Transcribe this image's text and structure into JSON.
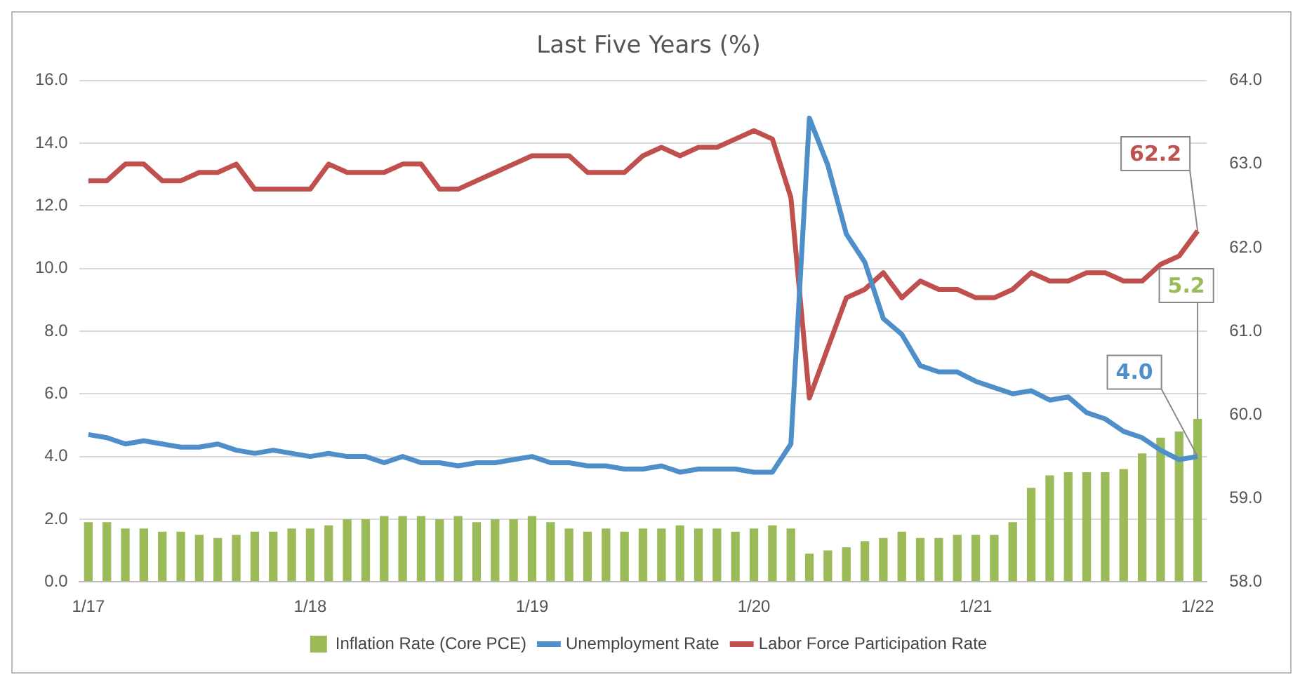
{
  "chart_data": {
    "type": "bar",
    "title": "Last Five Years (%)",
    "categories": [
      "1/17",
      null,
      null,
      null,
      null,
      null,
      null,
      null,
      null,
      null,
      null,
      null,
      "1/18",
      null,
      null,
      null,
      null,
      null,
      null,
      null,
      null,
      null,
      null,
      null,
      "1/19",
      null,
      null,
      null,
      null,
      null,
      null,
      null,
      null,
      null,
      null,
      null,
      "1/20",
      null,
      null,
      null,
      null,
      null,
      null,
      null,
      null,
      null,
      null,
      null,
      "1/21",
      null,
      null,
      null,
      null,
      null,
      null,
      null,
      null,
      null,
      null,
      null,
      "1/22"
    ],
    "series": [
      {
        "name": "Inflation Rate (Core PCE)",
        "color": "#9bbb59",
        "values": [
          1.9,
          1.9,
          1.7,
          1.7,
          1.6,
          1.6,
          1.5,
          1.4,
          1.5,
          1.6,
          1.6,
          1.7,
          1.7,
          1.8,
          2.0,
          2.0,
          2.1,
          2.1,
          2.1,
          2.0,
          2.1,
          1.9,
          2.0,
          2.0,
          2.1,
          1.9,
          1.7,
          1.6,
          1.7,
          1.6,
          1.7,
          1.7,
          1.8,
          1.7,
          1.7,
          1.6,
          1.7,
          1.8,
          1.7,
          0.9,
          1.0,
          1.1,
          1.3,
          1.4,
          1.6,
          1.4,
          1.4,
          1.5,
          1.5,
          1.5,
          1.9,
          3.0,
          3.4,
          3.5,
          3.5,
          3.5,
          3.6,
          4.1,
          4.6,
          4.8,
          5.2
        ],
        "value_labels": [
          null,
          null,
          null,
          null,
          null,
          null,
          null,
          null,
          null,
          null,
          null,
          null,
          null,
          null,
          null,
          null,
          null,
          null,
          null,
          null,
          null,
          null,
          null,
          null,
          null,
          null,
          null,
          null,
          null,
          null,
          null,
          null,
          null,
          null,
          null,
          null,
          null,
          null,
          null,
          null,
          null,
          null,
          null,
          null,
          null,
          null,
          null,
          null,
          null,
          null,
          null,
          null,
          null,
          null,
          null,
          null,
          null,
          null,
          null,
          null,
          "5.2"
        ]
      },
      {
        "name": "Unemployment Rate",
        "type": "line",
        "color": "#4f8fc9",
        "values": [
          4.7,
          4.6,
          4.4,
          4.5,
          4.4,
          4.3,
          4.3,
          4.4,
          4.2,
          4.1,
          4.2,
          4.1,
          4.0,
          4.1,
          4.0,
          4.0,
          3.8,
          4.0,
          3.8,
          3.8,
          3.7,
          3.8,
          3.8,
          3.9,
          4.0,
          3.8,
          3.8,
          3.7,
          3.7,
          3.6,
          3.6,
          3.7,
          3.5,
          3.6,
          3.6,
          3.6,
          3.5,
          3.5,
          4.4,
          14.8,
          13.3,
          11.1,
          10.2,
          8.4,
          7.9,
          6.9,
          6.7,
          6.7,
          6.4,
          6.2,
          6.0,
          6.1,
          5.8,
          5.9,
          5.4,
          5.2,
          4.8,
          4.6,
          4.2,
          3.9,
          4.0
        ],
        "value_labels": [
          null,
          null,
          null,
          null,
          null,
          null,
          null,
          null,
          null,
          null,
          null,
          null,
          null,
          null,
          null,
          null,
          null,
          null,
          null,
          null,
          null,
          null,
          null,
          null,
          null,
          null,
          null,
          null,
          null,
          null,
          null,
          null,
          null,
          null,
          null,
          null,
          null,
          null,
          null,
          null,
          null,
          null,
          null,
          null,
          null,
          null,
          null,
          null,
          null,
          null,
          null,
          null,
          null,
          null,
          null,
          null,
          null,
          null,
          null,
          null,
          "4.0"
        ]
      },
      {
        "name": "Labor Force Participation Rate",
        "type": "line",
        "axis": "y2",
        "color": "#c0504d",
        "values": [
          62.8,
          62.8,
          63.0,
          63.0,
          62.8,
          62.8,
          62.9,
          62.9,
          63.0,
          62.7,
          62.7,
          62.7,
          62.7,
          63.0,
          62.9,
          62.9,
          62.9,
          63.0,
          63.0,
          62.7,
          62.7,
          62.8,
          62.9,
          63.0,
          63.1,
          63.1,
          63.1,
          62.9,
          62.9,
          62.9,
          63.1,
          63.2,
          63.1,
          63.2,
          63.2,
          63.3,
          63.4,
          63.3,
          62.6,
          60.2,
          60.8,
          61.4,
          61.5,
          61.7,
          61.4,
          61.6,
          61.5,
          61.5,
          61.4,
          61.4,
          61.5,
          61.7,
          61.6,
          61.6,
          61.7,
          61.7,
          61.6,
          61.6,
          61.8,
          61.9,
          62.2
        ],
        "value_labels": [
          null,
          null,
          null,
          null,
          null,
          null,
          null,
          null,
          null,
          null,
          null,
          null,
          null,
          null,
          null,
          null,
          null,
          null,
          null,
          null,
          null,
          null,
          null,
          null,
          null,
          null,
          null,
          null,
          null,
          null,
          null,
          null,
          null,
          null,
          null,
          null,
          null,
          null,
          null,
          null,
          null,
          null,
          null,
          null,
          null,
          null,
          null,
          null,
          null,
          null,
          null,
          null,
          null,
          null,
          null,
          null,
          null,
          null,
          null,
          null,
          "62.2"
        ]
      }
    ],
    "ylim": [
      0,
      16
    ],
    "yticks": [
      {
        "value": 0,
        "label": "0.0"
      },
      {
        "value": 2,
        "label": "2.0"
      },
      {
        "value": 4,
        "label": "4.0"
      },
      {
        "value": 6,
        "label": "6.0"
      },
      {
        "value": 8,
        "label": "8.0"
      },
      {
        "value": 10,
        "label": "10.0"
      },
      {
        "value": 12,
        "label": "12.0"
      },
      {
        "value": 14,
        "label": "14.0"
      },
      {
        "value": 16,
        "label": "16.0"
      }
    ],
    "y2lim": [
      58,
      64
    ],
    "y2ticks": [
      {
        "value": 58,
        "label": "58.0"
      },
      {
        "value": 59,
        "label": "59.0"
      },
      {
        "value": 60,
        "label": "60.0"
      },
      {
        "value": 61,
        "label": "61.0"
      },
      {
        "value": 62,
        "label": "62.0"
      },
      {
        "value": 63,
        "label": "63.0"
      },
      {
        "value": 64,
        "label": "64.0"
      }
    ],
    "grid": "y",
    "legend": "bottom",
    "marker": "none",
    "line_style": "solid"
  }
}
